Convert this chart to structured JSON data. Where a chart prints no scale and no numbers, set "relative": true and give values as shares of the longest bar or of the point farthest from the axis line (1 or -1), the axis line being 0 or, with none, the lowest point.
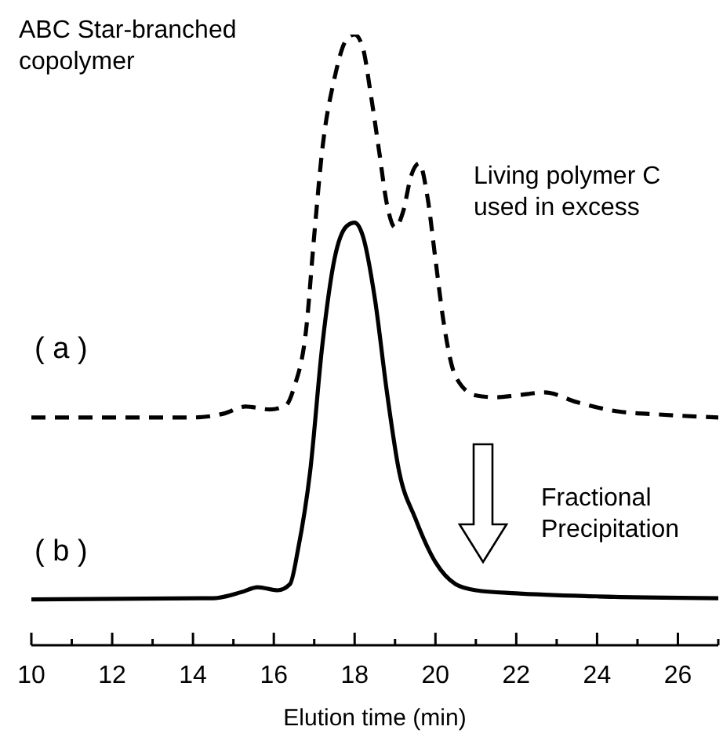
{
  "chart_data": {
    "type": "line",
    "xlabel": "Elution time (min)",
    "relative": true,
    "xlim": [
      10,
      27
    ],
    "xticks": [
      10,
      {
        "value": 11,
        "label": null
      },
      12,
      {
        "value": 13,
        "label": null
      },
      14,
      {
        "value": 15,
        "label": null
      },
      16,
      {
        "value": 17,
        "label": null
      },
      18,
      {
        "value": 19,
        "label": null
      },
      20,
      {
        "value": 21,
        "label": null
      },
      22,
      {
        "value": 23,
        "label": null
      },
      24,
      {
        "value": 25,
        "label": null
      },
      26,
      {
        "value": 27,
        "label": null
      }
    ],
    "grid": false,
    "legend": false,
    "marker": "none",
    "annotations": [
      "ABC Star-branched copolymer",
      "Living polymer C used in excess",
      "Fractional Precipitation"
    ],
    "series": [
      {
        "name": "( a )",
        "color": "#000000",
        "line_style": "dashed",
        "x": [
          10,
          14,
          14.8,
          15.3,
          15.9,
          16.3,
          16.5,
          16.8,
          17.0,
          17.2,
          17.5,
          17.8,
          18.0,
          18.2,
          18.4,
          18.6,
          18.8,
          19.0,
          19.2,
          19.4,
          19.6,
          19.8,
          20.0,
          20.2,
          20.5,
          21,
          21.5,
          22,
          22.7,
          23.5,
          24.5,
          25.5,
          27
        ],
        "values": [
          0.373,
          0.373,
          0.38,
          0.391,
          0.386,
          0.393,
          0.422,
          0.517,
          0.671,
          0.812,
          0.928,
          0.992,
          1,
          0.979,
          0.902,
          0.812,
          0.722,
          0.684,
          0.71,
          0.769,
          0.789,
          0.735,
          0.632,
          0.53,
          0.44,
          0.409,
          0.406,
          0.409,
          0.414,
          0.398,
          0.383,
          0.378,
          0.373
        ]
      },
      {
        "name": "( b )",
        "color": "#000000",
        "line_style": "solid",
        "x": [
          10,
          14.5,
          15.2,
          15.6,
          16.1,
          16.4,
          16.6,
          16.9,
          17.2,
          17.5,
          17.8,
          18.0,
          18.2,
          18.5,
          18.8,
          19.1,
          19.5,
          20,
          20.5,
          21,
          22,
          24,
          27
        ],
        "values": [
          0.075,
          0.077,
          0.087,
          0.095,
          0.09,
          0.1,
          0.157,
          0.285,
          0.491,
          0.632,
          0.686,
          0.692,
          0.671,
          0.568,
          0.414,
          0.285,
          0.208,
          0.136,
          0.1,
          0.09,
          0.085,
          0.08,
          0.077
        ]
      }
    ]
  }
}
